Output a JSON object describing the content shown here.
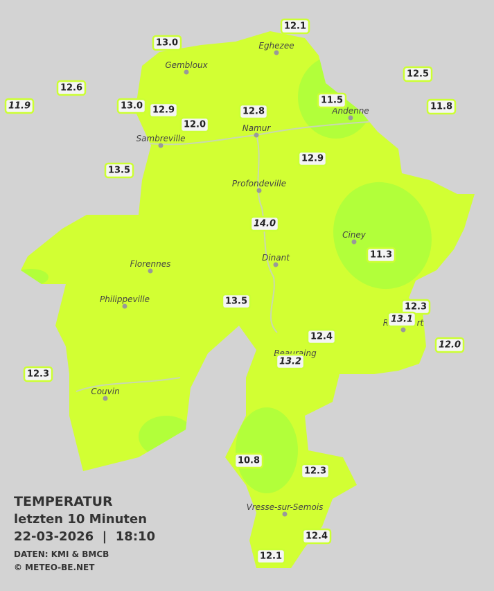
{
  "title": {
    "heading": "TEMPERATUR",
    "subheading": "letzten 10 Minuten",
    "datetime": "22-03-2026  |  18:10",
    "source": "DATEN: KMI & BMCB",
    "copyright": "© METEO-BE.NET"
  },
  "cities": [
    "Eghezee",
    "Gembloux",
    "Andenne",
    "Namur",
    "Sambreville",
    "Profondeville",
    "Ciney",
    "Dinant",
    "Florennes",
    "Philippeville",
    "Rochefort",
    "Beauraing",
    "Couvin",
    "Vresse-sur-Semois"
  ],
  "stations": [
    {
      "label": "12.1",
      "italic": false
    },
    {
      "label": "13.0",
      "italic": false
    },
    {
      "label": "12.6",
      "italic": false
    },
    {
      "label": "11.9",
      "italic": true
    },
    {
      "label": "13.0",
      "italic": false
    },
    {
      "label": "12.9",
      "italic": false
    },
    {
      "label": "12.0",
      "italic": false
    },
    {
      "label": "12.8",
      "italic": false
    },
    {
      "label": "12.5",
      "italic": false
    },
    {
      "label": "11.5",
      "italic": false
    },
    {
      "label": "11.8",
      "italic": false
    },
    {
      "label": "13.5",
      "italic": false
    },
    {
      "label": "12.9",
      "italic": false
    },
    {
      "label": "14.0",
      "italic": true
    },
    {
      "label": "11.3",
      "italic": false
    },
    {
      "label": "13.5",
      "italic": false
    },
    {
      "label": "12.3",
      "italic": false
    },
    {
      "label": "13.1",
      "italic": true
    },
    {
      "label": "12.0",
      "italic": true
    },
    {
      "label": "12.4",
      "italic": false
    },
    {
      "label": "13.2",
      "italic": true
    },
    {
      "label": "12.3",
      "italic": false
    },
    {
      "label": "10.8",
      "italic": false
    },
    {
      "label": "12.3",
      "italic": false
    },
    {
      "label": "12.4",
      "italic": false
    },
    {
      "label": "12.1",
      "italic": false
    }
  ]
}
